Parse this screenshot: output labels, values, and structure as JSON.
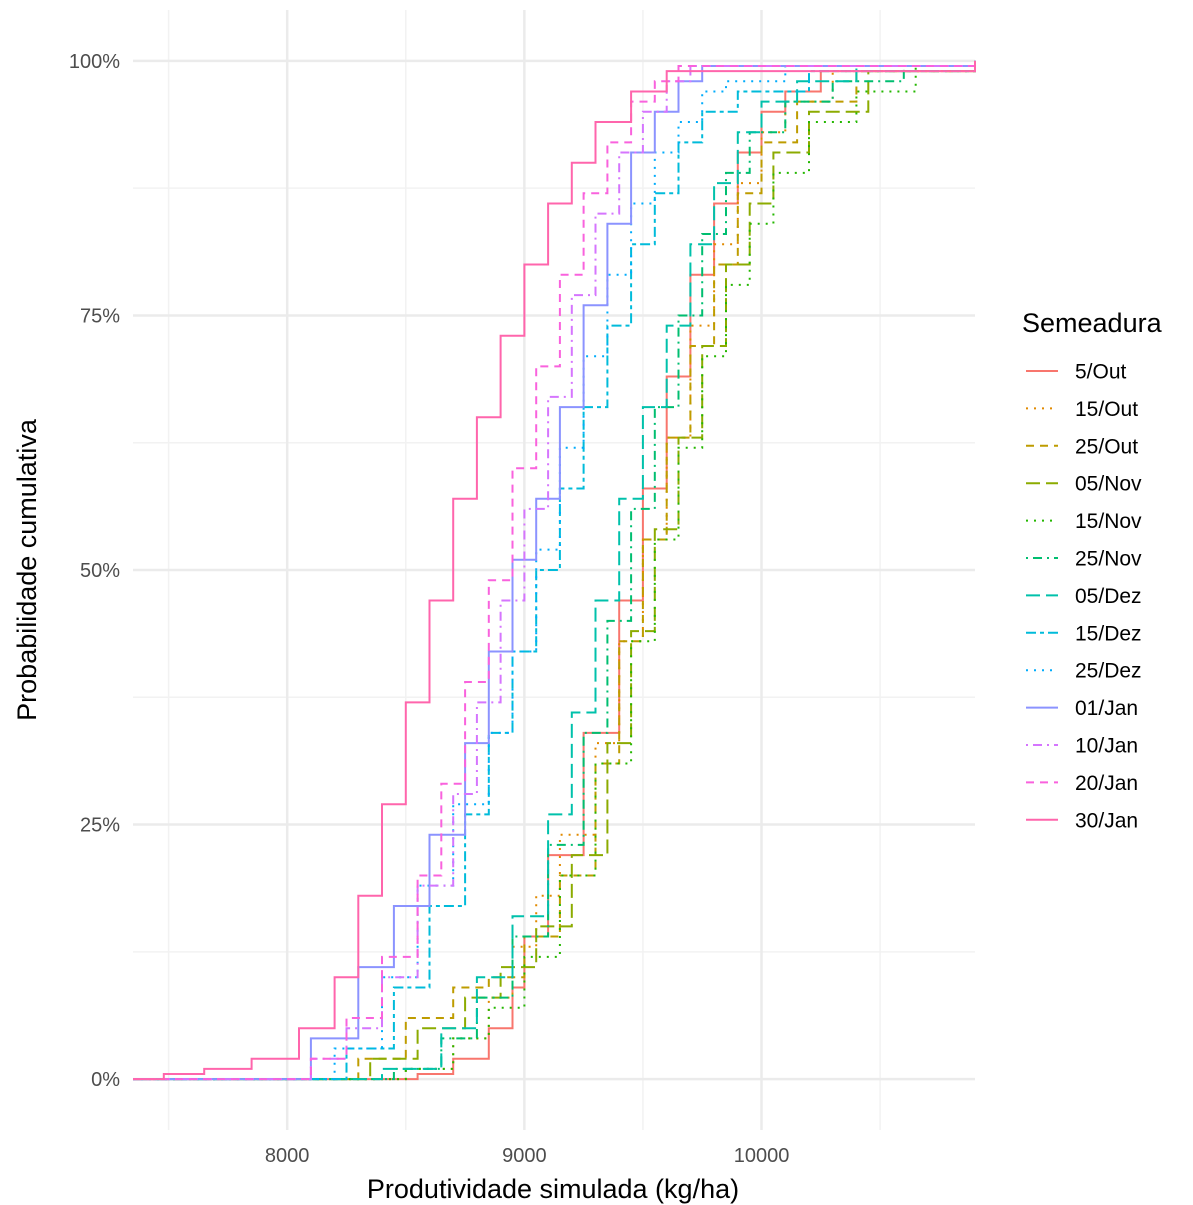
{
  "chart_data": {
    "type": "line",
    "subtype": "empirical cumulative distribution (step)",
    "xlabel": "Produtividade simulada (kg/ha)",
    "ylabel": "Probabilidade cumulativa",
    "xlim": [
      7350,
      10900
    ],
    "ylim": [
      -0.05,
      1.05
    ],
    "x_ticks": [
      8000,
      9000,
      10000
    ],
    "y_ticks": [
      0,
      0.25,
      0.5,
      0.75,
      1.0
    ],
    "y_tick_labels": [
      "0%",
      "25%",
      "50%",
      "75%",
      "100%"
    ],
    "grid": true,
    "legend": {
      "title": "Semeadura",
      "placement": "right"
    },
    "series": [
      {
        "name": "5/Out",
        "color": "#F8766D",
        "dash": "solid",
        "x": [
          7350,
          8480,
          8550,
          8700,
          8850,
          8950,
          9000,
          9100,
          9250,
          9400,
          9500,
          9600,
          9700,
          9800,
          9900,
          10000,
          10100,
          10250,
          10900
        ],
        "y": [
          0,
          0,
          0.005,
          0.02,
          0.05,
          0.09,
          0.14,
          0.22,
          0.34,
          0.47,
          0.58,
          0.69,
          0.79,
          0.86,
          0.91,
          0.95,
          0.97,
          0.99,
          1.0
        ]
      },
      {
        "name": "15/Out",
        "color": "#E18A00",
        "dash": "dotted",
        "x": [
          7350,
          8300,
          8500,
          8700,
          8850,
          8950,
          9050,
          9150,
          9300,
          9400,
          9500,
          9600,
          9700,
          9800,
          9900,
          10000,
          10100,
          10300,
          10900
        ],
        "y": [
          0,
          0,
          0.01,
          0.04,
          0.08,
          0.13,
          0.18,
          0.24,
          0.33,
          0.43,
          0.53,
          0.63,
          0.74,
          0.82,
          0.88,
          0.93,
          0.96,
          0.99,
          1.0
        ]
      },
      {
        "name": "25/Out",
        "color": "#BE9C00",
        "dash": "dashed",
        "x": [
          7350,
          8100,
          8300,
          8500,
          8700,
          8850,
          9000,
          9150,
          9300,
          9400,
          9500,
          9600,
          9700,
          9800,
          9900,
          10000,
          10150,
          10400,
          10900
        ],
        "y": [
          0,
          0,
          0.02,
          0.06,
          0.09,
          0.1,
          0.14,
          0.2,
          0.31,
          0.43,
          0.53,
          0.63,
          0.72,
          0.8,
          0.87,
          0.92,
          0.96,
          0.99,
          1.0
        ]
      },
      {
        "name": "05/Nov",
        "color": "#8CAB00",
        "dash": "longdash",
        "x": [
          7350,
          8150,
          8350,
          8550,
          8750,
          8900,
          9050,
          9200,
          9350,
          9450,
          9550,
          9650,
          9750,
          9850,
          9950,
          10050,
          10200,
          10450,
          10900
        ],
        "y": [
          0,
          0,
          0.02,
          0.05,
          0.08,
          0.11,
          0.15,
          0.22,
          0.33,
          0.44,
          0.54,
          0.63,
          0.72,
          0.8,
          0.86,
          0.91,
          0.95,
          0.99,
          1.0
        ]
      },
      {
        "name": "15/Nov",
        "color": "#24B700",
        "dash": "dotted",
        "x": [
          7350,
          8300,
          8500,
          8700,
          8850,
          9000,
          9150,
          9300,
          9450,
          9550,
          9650,
          9750,
          9850,
          9950,
          10050,
          10200,
          10400,
          10650,
          10900
        ],
        "y": [
          0,
          0,
          0.01,
          0.04,
          0.07,
          0.12,
          0.2,
          0.31,
          0.43,
          0.53,
          0.62,
          0.71,
          0.78,
          0.84,
          0.89,
          0.94,
          0.97,
          0.995,
          1.0
        ]
      },
      {
        "name": "25/Nov",
        "color": "#00BE70",
        "dash": "dotdash",
        "x": [
          7350,
          8250,
          8450,
          8650,
          8800,
          8950,
          9100,
          9250,
          9350,
          9450,
          9550,
          9650,
          9750,
          9850,
          9950,
          10100,
          10300,
          10600,
          10900
        ],
        "y": [
          0,
          0,
          0.01,
          0.04,
          0.08,
          0.14,
          0.23,
          0.34,
          0.45,
          0.56,
          0.66,
          0.75,
          0.83,
          0.89,
          0.93,
          0.96,
          0.98,
          0.995,
          1.0
        ]
      },
      {
        "name": "05/Dez",
        "color": "#00C1AB",
        "dash": "longdash",
        "x": [
          7350,
          8100,
          8400,
          8650,
          8800,
          8950,
          9100,
          9200,
          9300,
          9400,
          9500,
          9600,
          9700,
          9800,
          9900,
          10000,
          10150,
          10400,
          10900
        ],
        "y": [
          0,
          0,
          0.01,
          0.05,
          0.1,
          0.16,
          0.26,
          0.36,
          0.47,
          0.57,
          0.66,
          0.74,
          0.82,
          0.88,
          0.93,
          0.96,
          0.98,
          0.995,
          1.0
        ]
      },
      {
        "name": "15/Dez",
        "color": "#00BBDA",
        "dash": "twodash",
        "x": [
          7350,
          8000,
          8250,
          8450,
          8600,
          8750,
          8850,
          8950,
          9050,
          9150,
          9250,
          9350,
          9450,
          9550,
          9650,
          9750,
          9900,
          10200,
          10900
        ],
        "y": [
          0,
          0,
          0.03,
          0.09,
          0.17,
          0.26,
          0.34,
          0.42,
          0.5,
          0.58,
          0.66,
          0.74,
          0.82,
          0.87,
          0.92,
          0.95,
          0.97,
          0.99,
          1.0
        ]
      },
      {
        "name": "25/Dez",
        "color": "#00ACFC",
        "dash": "dotted",
        "x": [
          7350,
          7950,
          8200,
          8400,
          8550,
          8700,
          8850,
          8950,
          9050,
          9150,
          9250,
          9350,
          9450,
          9550,
          9650,
          9750,
          9850,
          10100,
          10900
        ],
        "y": [
          0,
          0,
          0.03,
          0.1,
          0.19,
          0.27,
          0.34,
          0.42,
          0.52,
          0.62,
          0.71,
          0.79,
          0.86,
          0.91,
          0.94,
          0.97,
          0.98,
          0.995,
          1.0
        ]
      },
      {
        "name": "01/Jan",
        "color": "#8B93FF",
        "dash": "solid",
        "x": [
          7350,
          7900,
          8100,
          8300,
          8450,
          8600,
          8750,
          8850,
          8950,
          9050,
          9150,
          9250,
          9350,
          9450,
          9550,
          9650,
          9750,
          9900,
          10900
        ],
        "y": [
          0,
          0,
          0.04,
          0.11,
          0.17,
          0.24,
          0.33,
          0.42,
          0.51,
          0.57,
          0.66,
          0.76,
          0.84,
          0.91,
          0.95,
          0.98,
          0.995,
          0.995,
          1.0
        ]
      },
      {
        "name": "10/Jan",
        "color": "#D575FE",
        "dash": "dotdash",
        "x": [
          7350,
          7900,
          8100,
          8250,
          8400,
          8550,
          8700,
          8800,
          8900,
          9000,
          9100,
          9200,
          9300,
          9400,
          9500,
          9600,
          9700,
          9850,
          10900
        ],
        "y": [
          0,
          0,
          0.02,
          0.05,
          0.1,
          0.19,
          0.28,
          0.37,
          0.47,
          0.56,
          0.67,
          0.77,
          0.85,
          0.91,
          0.95,
          0.98,
          0.995,
          0.995,
          1.0
        ]
      },
      {
        "name": "20/Jan",
        "color": "#F962DD",
        "dash": "dashed",
        "x": [
          7350,
          7850,
          8100,
          8250,
          8400,
          8550,
          8650,
          8750,
          8850,
          8950,
          9050,
          9150,
          9250,
          9350,
          9450,
          9550,
          9650,
          9800,
          10900
        ],
        "y": [
          0,
          0,
          0.02,
          0.06,
          0.12,
          0.2,
          0.29,
          0.39,
          0.49,
          0.6,
          0.7,
          0.79,
          0.87,
          0.92,
          0.96,
          0.98,
          0.995,
          0.995,
          1.0
        ]
      },
      {
        "name": "30/Jan",
        "color": "#FF65AC",
        "dash": "solid",
        "x": [
          7350,
          7480,
          7650,
          7850,
          8050,
          8200,
          8300,
          8400,
          8500,
          8600,
          8700,
          8800,
          8900,
          9000,
          9100,
          9200,
          9300,
          9450,
          9600,
          10900
        ],
        "y": [
          0,
          0.005,
          0.01,
          0.02,
          0.05,
          0.1,
          0.18,
          0.27,
          0.37,
          0.47,
          0.57,
          0.65,
          0.73,
          0.8,
          0.86,
          0.9,
          0.94,
          0.97,
          0.99,
          1.0
        ]
      }
    ]
  }
}
